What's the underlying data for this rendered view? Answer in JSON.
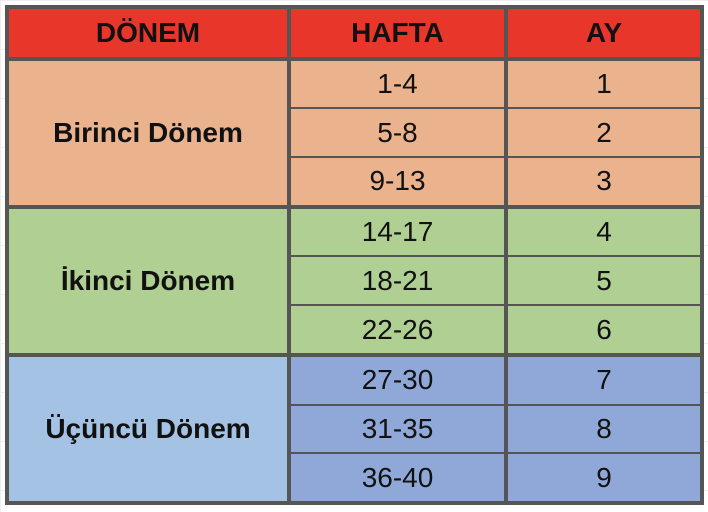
{
  "headers": {
    "period": "DÖNEM",
    "week": "HAFTA",
    "month": "AY"
  },
  "colors": {
    "header": "#E8372A",
    "first": "#EBB28E",
    "second": "#B0CF93",
    "third_period": "#A3C2E4",
    "third_rows": "#8FA8D8"
  },
  "groups": [
    {
      "name": "Birinci Dönem",
      "rows": [
        {
          "week": "1-4",
          "month": "1"
        },
        {
          "week": "5-8",
          "month": "2"
        },
        {
          "week": "9-13",
          "month": "3"
        }
      ]
    },
    {
      "name": "İkinci Dönem",
      "rows": [
        {
          "week": "14-17",
          "month": "4"
        },
        {
          "week": "18-21",
          "month": "5"
        },
        {
          "week": "22-26",
          "month": "6"
        }
      ]
    },
    {
      "name": "Üçüncü Dönem",
      "rows": [
        {
          "week": "27-30",
          "month": "7"
        },
        {
          "week": "31-35",
          "month": "8"
        },
        {
          "week": "36-40",
          "month": "9"
        }
      ]
    }
  ]
}
